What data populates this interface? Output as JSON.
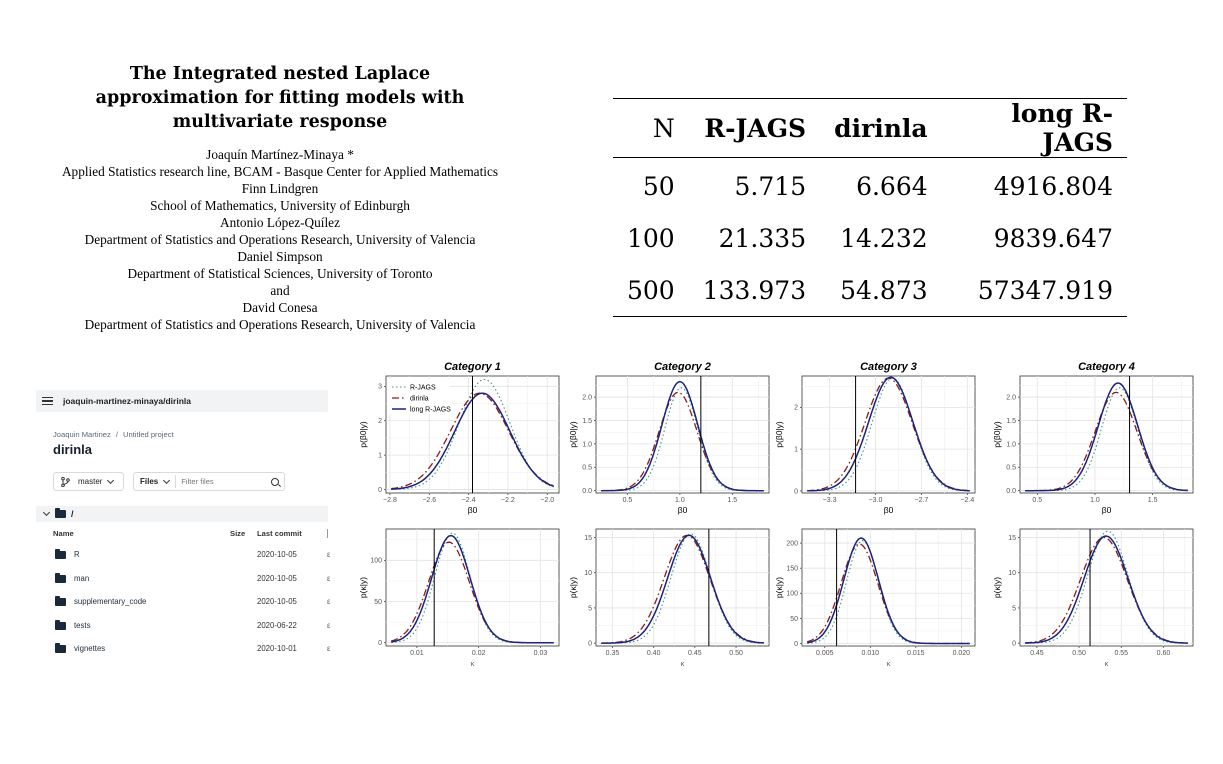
{
  "paper": {
    "title": "The Integrated nested Laplace approximation for fitting models with multivariate response",
    "lines": [
      "Joaquín Martínez-Minaya *",
      "Applied Statistics research line, BCAM - Basque Center for Applied Mathematics",
      "Finn Lindgren",
      "School of Mathematics, University of Edinburgh",
      "Antonio López-Quílez",
      "Department of Statistics and Operations Research, University of Valencia",
      "Daniel Simpson",
      "Department of Statistical Sciences, University of Toronto",
      "and",
      "David Conesa",
      "Department of Statistics and Operations Research, University of Valencia"
    ]
  },
  "table": {
    "headers": [
      "N",
      "R-JAGS",
      "dirinla",
      "long R-JAGS"
    ],
    "rows": [
      [
        "50",
        "5.715",
        "6.664",
        "4916.804"
      ],
      [
        "100",
        "21.335",
        "14.232",
        "9839.647"
      ],
      [
        "500",
        "133.973",
        "54.873",
        "57347.919"
      ]
    ]
  },
  "repo": {
    "path": "joaquin-martinez-minaya/dirinla",
    "breadcrumb": [
      "Joaquin Martinez",
      "Untitled project"
    ],
    "breadcrumb_sep": "/",
    "project_name": "dirinla",
    "branch": "master",
    "files_label": "Files",
    "filter_placeholder": "Filter files",
    "tree_root": "/",
    "columns": [
      "Name",
      "Size",
      "Last commit"
    ],
    "files": [
      {
        "name": "R",
        "date": "2020-10-05"
      },
      {
        "name": "man",
        "date": "2020-10-05"
      },
      {
        "name": "supplementary_code",
        "date": "2020-10-05"
      },
      {
        "name": "tests",
        "date": "2020-06-22"
      },
      {
        "name": "vignettes",
        "date": "2020-10-01"
      }
    ]
  },
  "chart_data": {
    "type": "line",
    "legend": {
      "placement": "top-left",
      "entries": [
        "R-JAGS",
        "dirinla",
        "long R-JAGS"
      ]
    },
    "series_colors": {
      "R-JAGS": "#3a9a78",
      "dirinla": "#8b1a1a",
      "long R-JAGS": "#1a237e"
    },
    "grid": true,
    "panels": [
      {
        "title": "Category 1",
        "xlabel": "β0",
        "ylabel": "p(β0|y)",
        "xlim": [
          -2.82,
          -1.94
        ],
        "ylim": [
          -0.1,
          3.3
        ],
        "xticks": [
          -2.8,
          -2.6,
          -2.4,
          -2.2,
          -2.0
        ],
        "xtick_labels": [
          "−2.8",
          "−2.6",
          "−2.4",
          "−2.2",
          "−2.0"
        ],
        "yticks": [
          0,
          1,
          2,
          3
        ],
        "true_value": -2.38,
        "mean": -2.33,
        "sd": 0.14,
        "peaks": [
          3.2,
          2.8,
          2.8
        ]
      },
      {
        "title": "Category 2",
        "xlabel": "β0",
        "ylabel": "p(β0|y)",
        "xlim": [
          0.2,
          1.85
        ],
        "ylim": [
          -0.05,
          2.45
        ],
        "xticks": [
          0.5,
          1.0,
          1.5
        ],
        "xtick_labels": [
          "0.5",
          "1.0",
          "1.5"
        ],
        "yticks": [
          0.0,
          0.5,
          1.0,
          1.5,
          2.0
        ],
        "ytick_labels": [
          "0.0",
          "0.5",
          "1.0",
          "1.5",
          "2.0"
        ],
        "true_value": 1.2,
        "mean": 1.0,
        "sd": 0.17,
        "peaks": [
          2.2,
          2.1,
          2.33
        ]
      },
      {
        "title": "Category 3",
        "xlabel": "β0",
        "ylabel": "p(β0|y)",
        "xlim": [
          -3.48,
          -2.35
        ],
        "ylim": [
          -0.05,
          2.75
        ],
        "xticks": [
          -3.3,
          -3.0,
          -2.7,
          -2.4
        ],
        "xtick_labels": [
          "−3.3",
          "−3.0",
          "−2.7",
          "−2.4"
        ],
        "yticks": [
          0,
          1,
          2
        ],
        "true_value": -3.13,
        "mean": -2.9,
        "sd": 0.145,
        "peaks": [
          2.7,
          2.7,
          2.72
        ]
      },
      {
        "title": "Category 4",
        "xlabel": "β0",
        "ylabel": "p(β0|y)",
        "xlim": [
          0.35,
          1.85
        ],
        "ylim": [
          -0.05,
          2.45
        ],
        "xticks": [
          0.5,
          1.0,
          1.5
        ],
        "xtick_labels": [
          "0.5",
          "1.0",
          "1.5"
        ],
        "yticks": [
          0.0,
          0.5,
          1.0,
          1.5,
          2.0
        ],
        "ytick_labels": [
          "0.0",
          "0.5",
          "1.0",
          "1.5",
          "2.0"
        ],
        "true_value": 1.3,
        "mean": 1.2,
        "sd": 0.17,
        "peaks": [
          2.2,
          2.1,
          2.3
        ]
      },
      {
        "title": "",
        "xlabel": "κ",
        "ylabel": "p(κ|y)",
        "xlim": [
          0.005,
          0.033
        ],
        "ylim": [
          -4,
          138
        ],
        "xticks": [
          0.01,
          0.02,
          0.03
        ],
        "xtick_labels": [
          "0.01",
          "0.02",
          "0.03"
        ],
        "yticks": [
          0,
          50,
          100
        ],
        "true_value": 0.0128,
        "mean": 0.0155,
        "sd": 0.0031,
        "peaks": [
          133,
          122,
          130
        ]
      },
      {
        "title": "",
        "xlabel": "κ",
        "ylabel": "p(κ|y)",
        "xlim": [
          0.33,
          0.54
        ],
        "ylim": [
          -0.4,
          16.2
        ],
        "xticks": [
          0.35,
          0.4,
          0.45,
          0.5
        ],
        "xtick_labels": [
          "0.35",
          "0.40",
          "0.45",
          "0.50"
        ],
        "yticks": [
          0,
          5,
          10,
          15
        ],
        "true_value": 0.467,
        "mean": 0.443,
        "sd": 0.026,
        "peaks": [
          15.5,
          15.3,
          15.3
        ]
      },
      {
        "title": "",
        "xlabel": "κ",
        "ylabel": "p(κ|y)",
        "xlim": [
          0.0025,
          0.0215
        ],
        "ylim": [
          -5,
          228
        ],
        "xticks": [
          0.005,
          0.01,
          0.015,
          0.02
        ],
        "xtick_labels": [
          "0.005",
          "0.010",
          "0.015",
          "0.020"
        ],
        "yticks": [
          0,
          50,
          100,
          150,
          200
        ],
        "true_value": 0.0063,
        "mean": 0.009,
        "sd": 0.0019,
        "peaks": [
          205,
          198,
          210
        ]
      },
      {
        "title": "",
        "xlabel": "κ",
        "ylabel": "p(κ|y)",
        "xlim": [
          0.43,
          0.635
        ],
        "ylim": [
          -0.4,
          16.2
        ],
        "xticks": [
          0.45,
          0.5,
          0.55,
          0.6
        ],
        "xtick_labels": [
          "0.45",
          "0.50",
          "0.55",
          "0.60"
        ],
        "yticks": [
          0,
          5,
          10,
          15
        ],
        "true_value": 0.513,
        "mean": 0.532,
        "sd": 0.026,
        "peaks": [
          15.9,
          15.0,
          15.2
        ]
      }
    ]
  }
}
